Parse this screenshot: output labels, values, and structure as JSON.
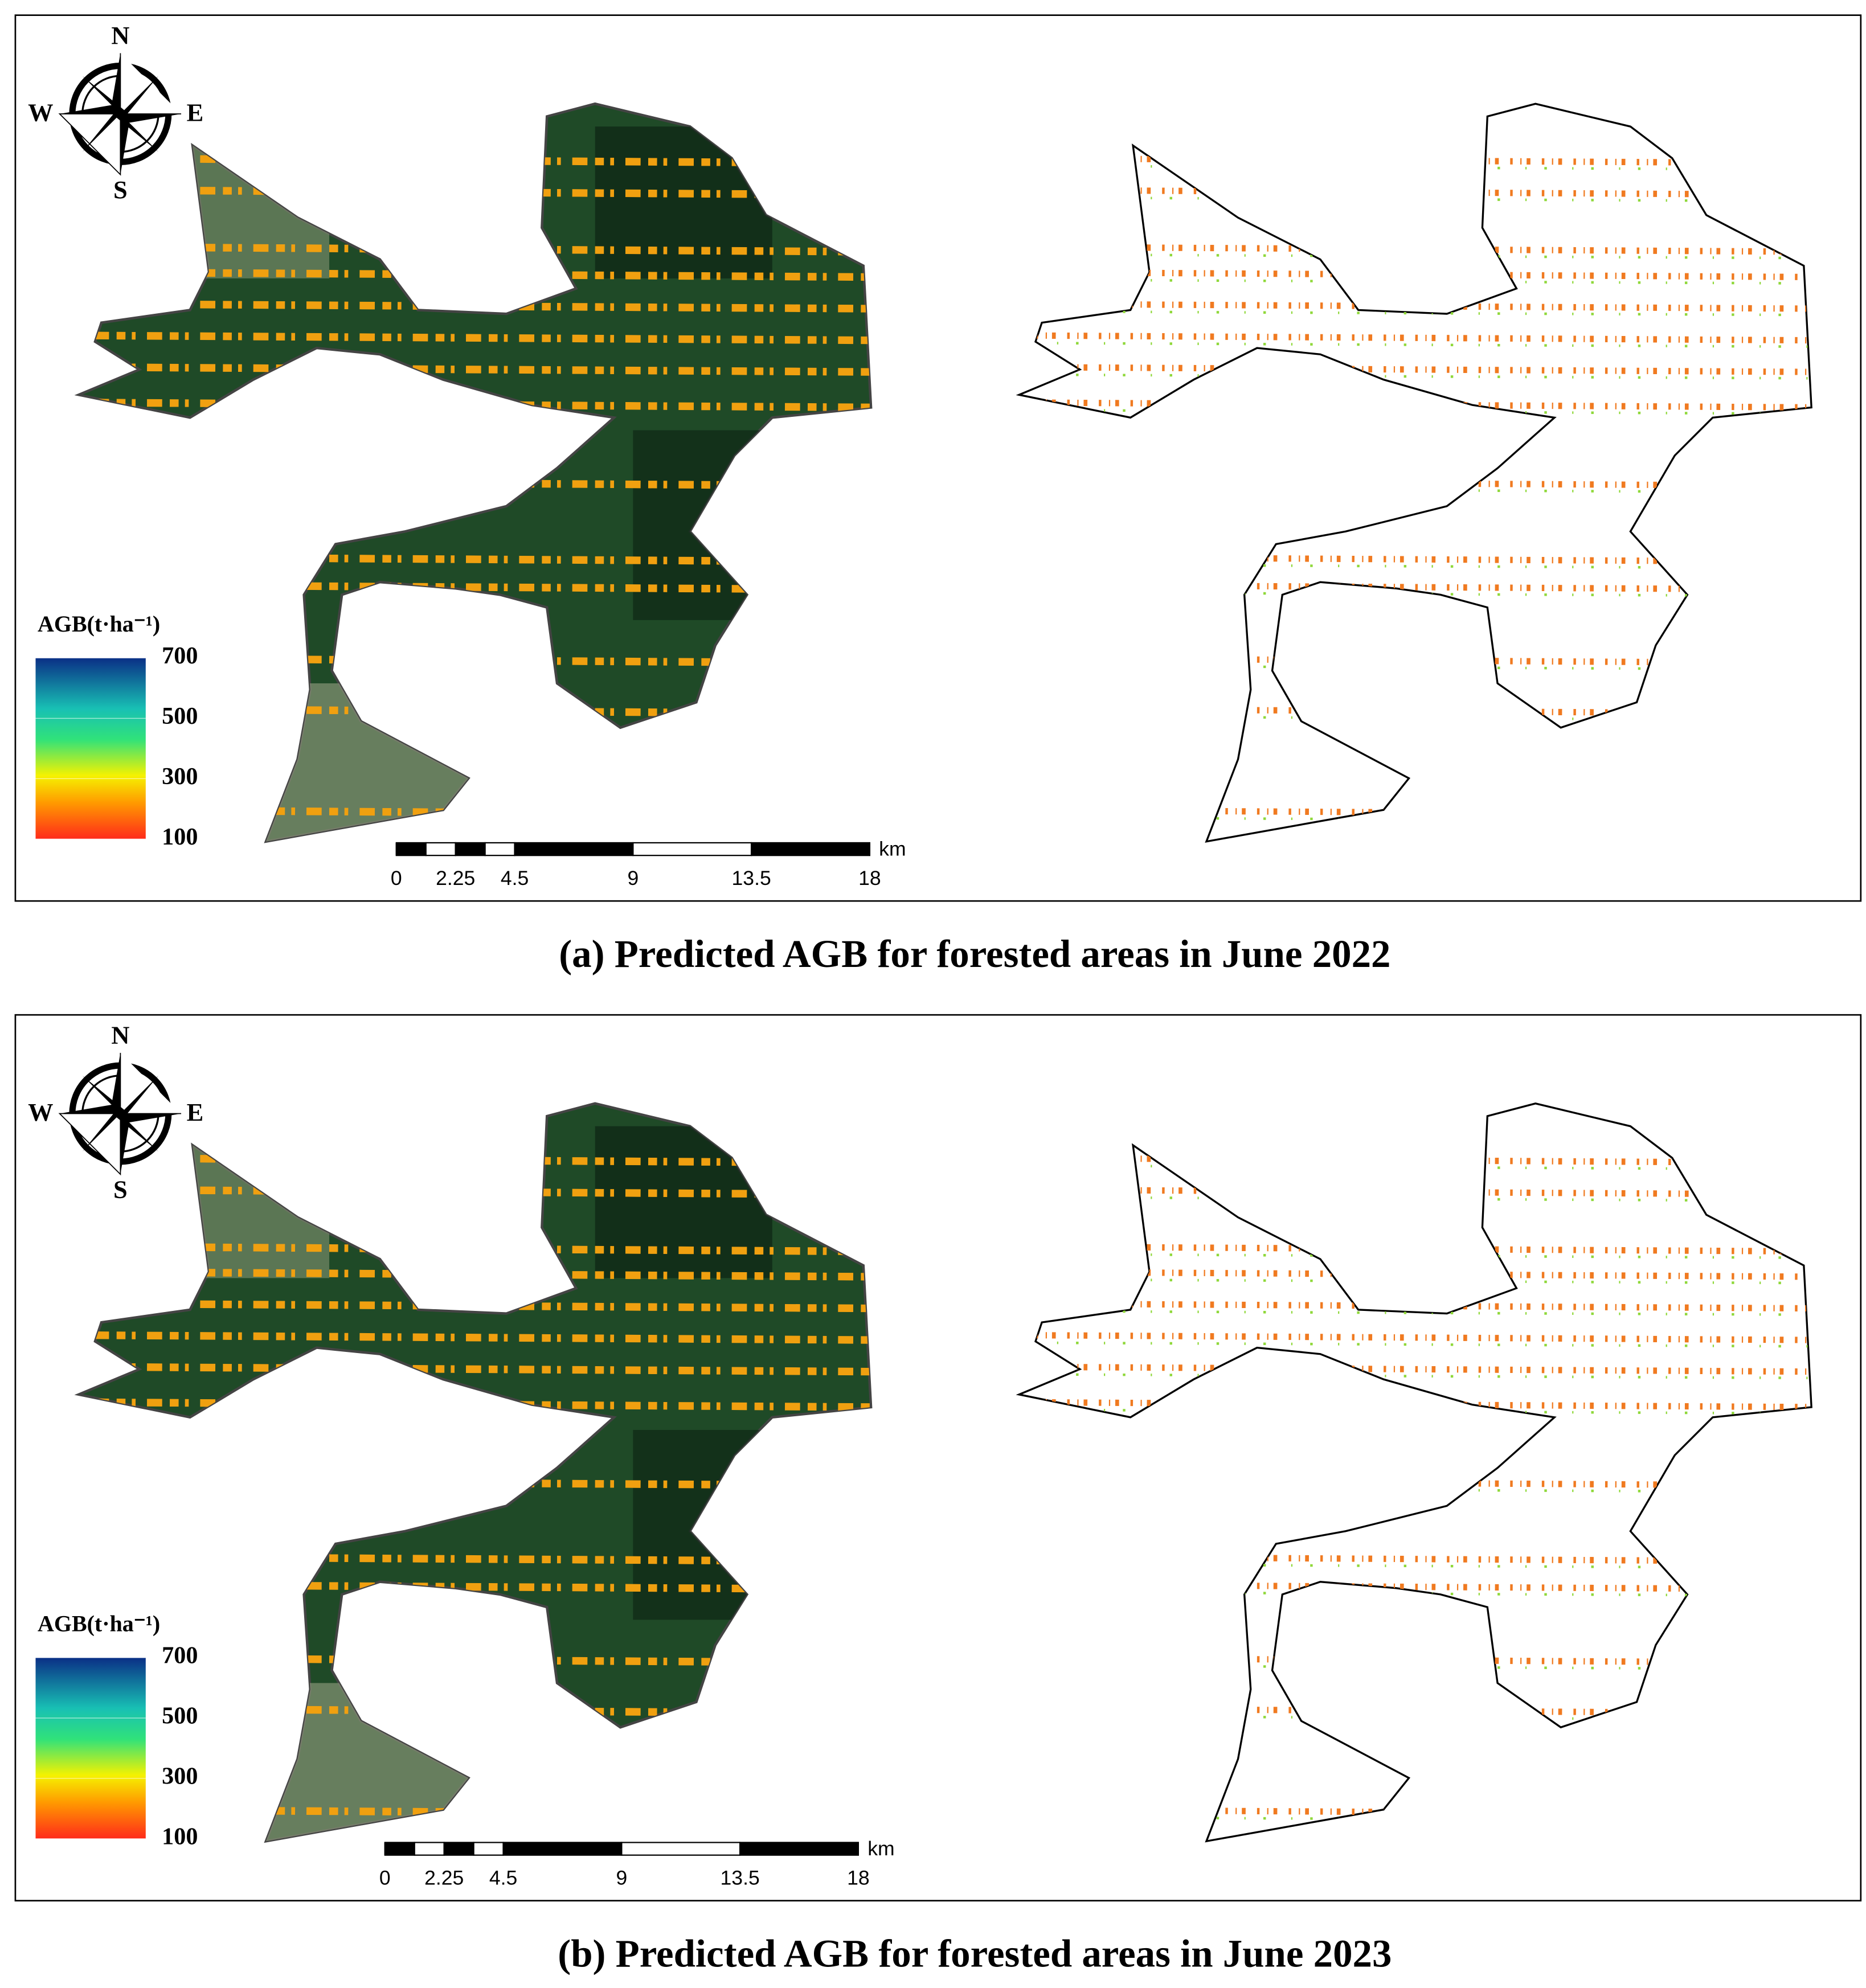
{
  "panels": [
    {
      "caption": "(a) Predicted AGB for forested areas in June 2022",
      "compass": {
        "north": "N",
        "south": "S",
        "east": "E",
        "west": "W"
      },
      "legend": {
        "title": "AGB(t·ha⁻¹)",
        "ticks": [
          700,
          500,
          300,
          100
        ]
      },
      "scale_bar": {
        "ticks": [
          0,
          2.25,
          4.5,
          9,
          13.5,
          18
        ],
        "unit": "km"
      }
    },
    {
      "caption": "(b) Predicted AGB for forested areas in June 2023",
      "compass": {
        "north": "N",
        "south": "S",
        "east": "E",
        "west": "W"
      },
      "legend": {
        "title": "AGB(t·ha⁻¹)",
        "ticks": [
          700,
          500,
          300,
          100
        ]
      },
      "scale_bar": {
        "ticks": [
          0,
          2.25,
          4.5,
          9,
          13.5,
          18
        ],
        "unit": "km"
      }
    }
  ]
}
